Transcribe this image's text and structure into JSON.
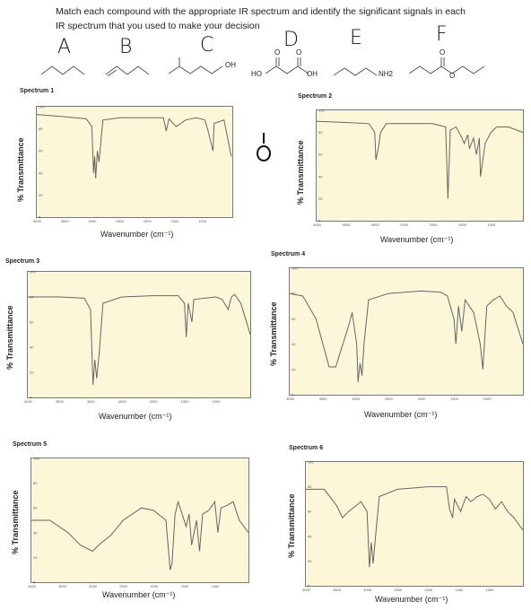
{
  "question": {
    "line1": "Match each compound with the appropriate IR spectrum and identify the significant signals in each",
    "line2": "IR spectrum that you used to make your decision"
  },
  "compounds": [
    {
      "letter": "A",
      "atom_labels": []
    },
    {
      "letter": "B",
      "atom_labels": []
    },
    {
      "letter": "C",
      "atom_labels": [
        "OH"
      ]
    },
    {
      "letter": "D",
      "atom_labels": [
        "HO",
        "OH",
        "O",
        "O"
      ]
    },
    {
      "letter": "E",
      "atom_labels": [
        "NH2"
      ]
    },
    {
      "letter": "F",
      "atom_labels": [
        "O",
        "O"
      ]
    }
  ],
  "handwritten_mark": "O",
  "chart_data": [
    {
      "type": "line",
      "title": "Spectrum 1",
      "xlabel": "Wavenumber (cm⁻¹)",
      "ylabel": "% Transmittance",
      "xlim": [
        4000,
        450
      ],
      "ylim": [
        0,
        100
      ],
      "x_ticks": [
        4000,
        3500,
        3000,
        2500,
        2000,
        1500,
        1000
      ],
      "y_ticks": [
        0,
        20,
        40,
        60,
        80,
        100
      ],
      "series": [
        {
          "points": [
            [
              4000,
              93
            ],
            [
              3500,
              91
            ],
            [
              3100,
              89
            ],
            [
              3000,
              82
            ],
            [
              2970,
              40
            ],
            [
              2950,
              55
            ],
            [
              2930,
              35
            ],
            [
              2900,
              60
            ],
            [
              2870,
              50
            ],
            [
              2800,
              88
            ],
            [
              2500,
              90
            ],
            [
              2000,
              90
            ],
            [
              1700,
              90
            ],
            [
              1650,
              78
            ],
            [
              1600,
              89
            ],
            [
              1470,
              82
            ],
            [
              1380,
              85
            ],
            [
              1300,
              88
            ],
            [
              1100,
              90
            ],
            [
              950,
              88
            ],
            [
              900,
              80
            ],
            [
              800,
              60
            ],
            [
              780,
              85
            ],
            [
              600,
              88
            ],
            [
              470,
              55
            ]
          ]
        }
      ]
    },
    {
      "type": "line",
      "title": "Spectrum 2",
      "xlabel": "Wavenumber (cm⁻¹)",
      "ylabel": "% Transmittance",
      "xlim": [
        4000,
        450
      ],
      "ylim": [
        0,
        100
      ],
      "x_ticks": [
        4000,
        3500,
        3000,
        2500,
        2000,
        1500,
        1000
      ],
      "y_ticks": [
        0,
        20,
        40,
        60,
        80,
        100
      ],
      "series": [
        {
          "points": [
            [
              4000,
              90
            ],
            [
              3500,
              89
            ],
            [
              3100,
              88
            ],
            [
              3000,
              80
            ],
            [
              2980,
              55
            ],
            [
              2940,
              65
            ],
            [
              2900,
              80
            ],
            [
              2800,
              88
            ],
            [
              2500,
              88
            ],
            [
              2000,
              88
            ],
            [
              1780,
              85
            ],
            [
              1740,
              20
            ],
            [
              1700,
              82
            ],
            [
              1600,
              85
            ],
            [
              1500,
              75
            ],
            [
              1460,
              70
            ],
            [
              1400,
              78
            ],
            [
              1370,
              65
            ],
            [
              1300,
              75
            ],
            [
              1250,
              60
            ],
            [
              1200,
              75
            ],
            [
              1180,
              40
            ],
            [
              1100,
              70
            ],
            [
              1050,
              75
            ],
            [
              1000,
              80
            ],
            [
              900,
              85
            ],
            [
              700,
              85
            ],
            [
              450,
              80
            ]
          ]
        }
      ]
    },
    {
      "type": "line",
      "title": "Spectrum 3",
      "xlabel": "Wavenumber (cm⁻¹)",
      "ylabel": "% Transmittance",
      "xlim": [
        4000,
        450
      ],
      "ylim": [
        0,
        100
      ],
      "x_ticks": [
        4000,
        3500,
        3000,
        2500,
        2000,
        1500,
        1000
      ],
      "y_ticks": [
        0,
        20,
        40,
        60,
        80,
        100
      ],
      "series": [
        {
          "points": [
            [
              4000,
              80
            ],
            [
              3500,
              80
            ],
            [
              3100,
              79
            ],
            [
              3000,
              70
            ],
            [
              2960,
              10
            ],
            [
              2930,
              30
            ],
            [
              2900,
              15
            ],
            [
              2860,
              35
            ],
            [
              2800,
              75
            ],
            [
              2500,
              80
            ],
            [
              2000,
              81
            ],
            [
              1600,
              81
            ],
            [
              1500,
              75
            ],
            [
              1470,
              48
            ],
            [
              1440,
              75
            ],
            [
              1380,
              60
            ],
            [
              1350,
              78
            ],
            [
              1000,
              80
            ],
            [
              900,
              78
            ],
            [
              800,
              70
            ],
            [
              750,
              80
            ],
            [
              700,
              82
            ],
            [
              600,
              75
            ],
            [
              450,
              50
            ]
          ]
        }
      ]
    },
    {
      "type": "line",
      "title": "Spectrum 4",
      "xlabel": "Wavenumber (cm⁻¹)",
      "ylabel": "% Transmittance",
      "xlim": [
        4000,
        450
      ],
      "ylim": [
        0,
        100
      ],
      "x_ticks": [
        4000,
        3500,
        3000,
        2500,
        2000,
        1500,
        1000
      ],
      "y_ticks": [
        0,
        20,
        40,
        60,
        80,
        100
      ],
      "series": [
        {
          "points": [
            [
              4000,
              80
            ],
            [
              3800,
              78
            ],
            [
              3600,
              60
            ],
            [
              3400,
              22
            ],
            [
              3300,
              22
            ],
            [
              3100,
              55
            ],
            [
              3050,
              65
            ],
            [
              2980,
              40
            ],
            [
              2960,
              10
            ],
            [
              2930,
              25
            ],
            [
              2900,
              15
            ],
            [
              2870,
              40
            ],
            [
              2800,
              75
            ],
            [
              2500,
              80
            ],
            [
              2000,
              82
            ],
            [
              1700,
              81
            ],
            [
              1600,
              78
            ],
            [
              1500,
              60
            ],
            [
              1470,
              40
            ],
            [
              1430,
              70
            ],
            [
              1380,
              50
            ],
            [
              1330,
              75
            ],
            [
              1200,
              65
            ],
            [
              1100,
              40
            ],
            [
              1060,
              20
            ],
            [
              1000,
              70
            ],
            [
              900,
              75
            ],
            [
              800,
              78
            ],
            [
              700,
              70
            ],
            [
              600,
              65
            ],
            [
              450,
              40
            ]
          ]
        }
      ]
    },
    {
      "type": "line",
      "title": "Spectrum 5",
      "xlabel": "Wavenumber (cm⁻¹)",
      "ylabel": "% Transmittance",
      "xlim": [
        4000,
        450
      ],
      "ylim": [
        0,
        100
      ],
      "x_ticks": [
        4000,
        3500,
        3000,
        2500,
        2000,
        1500,
        1000
      ],
      "y_ticks": [
        0,
        20,
        40,
        60,
        80,
        100
      ],
      "series": [
        {
          "points": [
            [
              4000,
              50
            ],
            [
              3700,
              50
            ],
            [
              3400,
              40
            ],
            [
              3200,
              30
            ],
            [
              3000,
              25
            ],
            [
              2900,
              30
            ],
            [
              2700,
              38
            ],
            [
              2500,
              50
            ],
            [
              2200,
              60
            ],
            [
              2000,
              58
            ],
            [
              1800,
              50
            ],
            [
              1730,
              10
            ],
            [
              1700,
              15
            ],
            [
              1650,
              55
            ],
            [
              1600,
              65
            ],
            [
              1470,
              45
            ],
            [
              1420,
              55
            ],
            [
              1380,
              30
            ],
            [
              1300,
              50
            ],
            [
              1250,
              25
            ],
            [
              1200,
              55
            ],
            [
              1100,
              58
            ],
            [
              1000,
              65
            ],
            [
              950,
              40
            ],
            [
              900,
              60
            ],
            [
              800,
              62
            ],
            [
              700,
              65
            ],
            [
              600,
              50
            ],
            [
              450,
              40
            ]
          ]
        }
      ]
    },
    {
      "type": "line",
      "title": "Spectrum 6",
      "xlabel": "Wavenumber (cm⁻¹)",
      "ylabel": "% Transmittance",
      "xlim": [
        4000,
        450
      ],
      "ylim": [
        0,
        100
      ],
      "x_ticks": [
        4000,
        3500,
        3000,
        2500,
        2000,
        1500,
        1000
      ],
      "y_ticks": [
        0,
        20,
        40,
        60,
        80,
        100
      ],
      "series": [
        {
          "points": [
            [
              4000,
              78
            ],
            [
              3700,
              78
            ],
            [
              3500,
              65
            ],
            [
              3400,
              55
            ],
            [
              3300,
              60
            ],
            [
              3100,
              68
            ],
            [
              3000,
              60
            ],
            [
              2960,
              15
            ],
            [
              2930,
              35
            ],
            [
              2900,
              18
            ],
            [
              2860,
              40
            ],
            [
              2800,
              72
            ],
            [
              2500,
              78
            ],
            [
              2000,
              80
            ],
            [
              1700,
              80
            ],
            [
              1650,
              62
            ],
            [
              1600,
              55
            ],
            [
              1570,
              70
            ],
            [
              1470,
              60
            ],
            [
              1380,
              72
            ],
            [
              1300,
              68
            ],
            [
              1200,
              72
            ],
            [
              1100,
              74
            ],
            [
              1000,
              70
            ],
            [
              900,
              62
            ],
            [
              800,
              68
            ],
            [
              700,
              60
            ],
            [
              600,
              55
            ],
            [
              450,
              45
            ]
          ]
        }
      ]
    }
  ]
}
